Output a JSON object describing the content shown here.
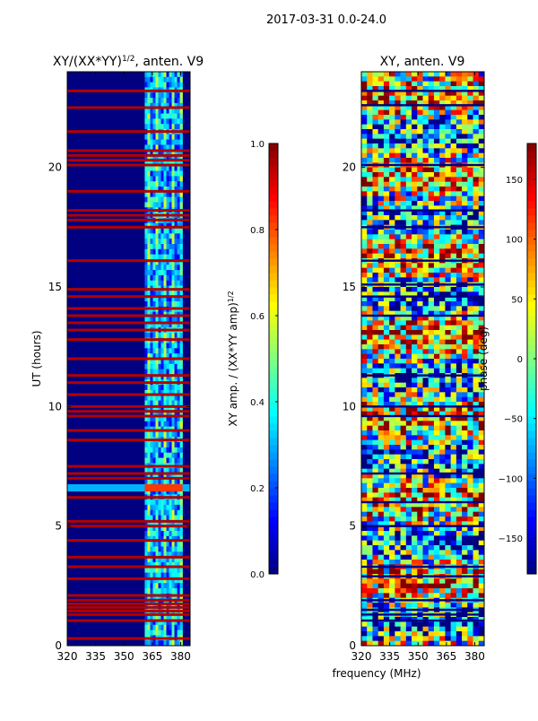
{
  "suptitle": "2017-03-31 0.0-24.0",
  "shared_xlabel": "frequency (MHz)",
  "chart_data": [
    {
      "type": "heatmap",
      "title": "XY/(XX*YY)",
      "title_superscript": "1/2",
      "title_suffix": ", anten. V9",
      "xlabel": "",
      "ylabel": "UT (hours)",
      "xlim": [
        320,
        385
      ],
      "ylim": [
        0,
        24
      ],
      "xticks": [
        320,
        335,
        350,
        365,
        380
      ],
      "yticks": [
        0,
        5,
        10,
        15,
        20
      ],
      "colormap": "jet",
      "colorbar": {
        "label": "XY amp. / (XX*YY amp)",
        "label_superscript": "1/2",
        "range": [
          0.0,
          1.0
        ],
        "ticks": [
          "0.0",
          "0.2",
          "0.4",
          "0.6",
          "0.8",
          "1.0"
        ],
        "tick_values": [
          0.0,
          0.2,
          0.4,
          0.6,
          0.8,
          1.0
        ]
      },
      "features": {
        "background_value": 0.07,
        "active_band_mhz": [
          361,
          381
        ],
        "flagged_hours": [
          0.3,
          1.05,
          1.3,
          1.45,
          1.6,
          1.75,
          1.9,
          2.1,
          2.8,
          3.3,
          3.7,
          4.4,
          5.0,
          5.2,
          6.2,
          7.0,
          7.2,
          7.5,
          8.6,
          9.0,
          9.6,
          9.8,
          10.0,
          10.5,
          11.0,
          11.3,
          12.0,
          12.8,
          13.2,
          13.5,
          13.8,
          14.1,
          14.6,
          14.9,
          16.1,
          17.5,
          17.8,
          18.0,
          18.2,
          19.0,
          20.1,
          20.3,
          20.5,
          20.7,
          21.5,
          22.5,
          23.2
        ]
      }
    },
    {
      "type": "heatmap",
      "title": "XY, anten. V9",
      "xlabel": "frequency (MHz)",
      "ylabel": "",
      "xlim": [
        320,
        385
      ],
      "ylim": [
        0,
        24
      ],
      "xticks": [
        320,
        335,
        350,
        365,
        380
      ],
      "yticks": [
        0,
        5,
        10,
        15,
        20
      ],
      "colormap": "jet",
      "colorbar": {
        "label": "phase (deg)",
        "range": [
          -180,
          180
        ],
        "ticks": [
          "−150",
          "−100",
          "−50",
          "0",
          "50",
          "100",
          "150"
        ],
        "tick_values": [
          -150,
          -100,
          -50,
          0,
          50,
          100,
          150
        ]
      },
      "features": {
        "flagged_hours": [
          1.05,
          1.3,
          1.5,
          1.9,
          2.9,
          3.3,
          5.0,
          6.0,
          7.2,
          9.6,
          10.0,
          11.3,
          13.8,
          14.6,
          15.1,
          16.1,
          17.5,
          18.2,
          20.1,
          22.6,
          23.2
        ]
      }
    }
  ]
}
